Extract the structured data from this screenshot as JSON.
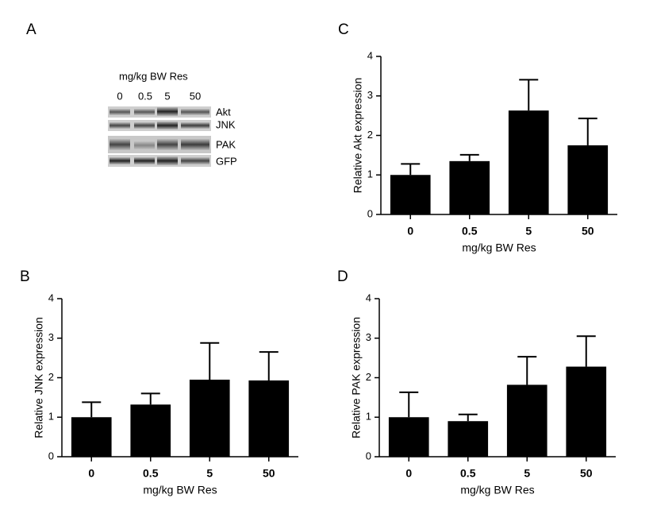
{
  "blot": {
    "panel": "A",
    "title": "mg/kg BW Res",
    "lanes": [
      "0",
      "0.5",
      "5",
      "50"
    ],
    "bands": [
      "Akt",
      "JNK",
      "PAK",
      "GFP"
    ]
  },
  "chart_data": [
    {
      "type": "bar",
      "panel": "C",
      "ylabel": "Relative Akt expression",
      "xlabel": "mg/kg BW Res",
      "categories": [
        "0",
        "0.5",
        "5",
        "50"
      ],
      "values": [
        1.0,
        1.35,
        2.63,
        1.75
      ],
      "errors": [
        0.28,
        0.16,
        0.78,
        0.68
      ],
      "color": "#000000",
      "ylim": [
        0,
        4
      ],
      "yticks": [
        0,
        1,
        2,
        3,
        4
      ]
    },
    {
      "type": "bar",
      "panel": "B",
      "ylabel": "Relative JNK expression",
      "xlabel": "mg/kg BW Res",
      "categories": [
        "0",
        "0.5",
        "5",
        "50"
      ],
      "values": [
        1.0,
        1.32,
        1.95,
        1.93
      ],
      "errors": [
        0.38,
        0.28,
        0.93,
        0.72
      ],
      "color": "#000000",
      "ylim": [
        0,
        4
      ],
      "yticks": [
        0,
        1,
        2,
        3,
        4
      ]
    },
    {
      "type": "bar",
      "panel": "D",
      "ylabel": "Relative PAK expression",
      "xlabel": "mg/kg BW Res",
      "categories": [
        "0",
        "0.5",
        "5",
        "50"
      ],
      "values": [
        1.0,
        0.9,
        1.82,
        2.28
      ],
      "errors": [
        0.63,
        0.17,
        0.71,
        0.77
      ],
      "color": "#000000",
      "ylim": [
        0,
        4
      ],
      "yticks": [
        0,
        1,
        2,
        3,
        4
      ]
    }
  ]
}
